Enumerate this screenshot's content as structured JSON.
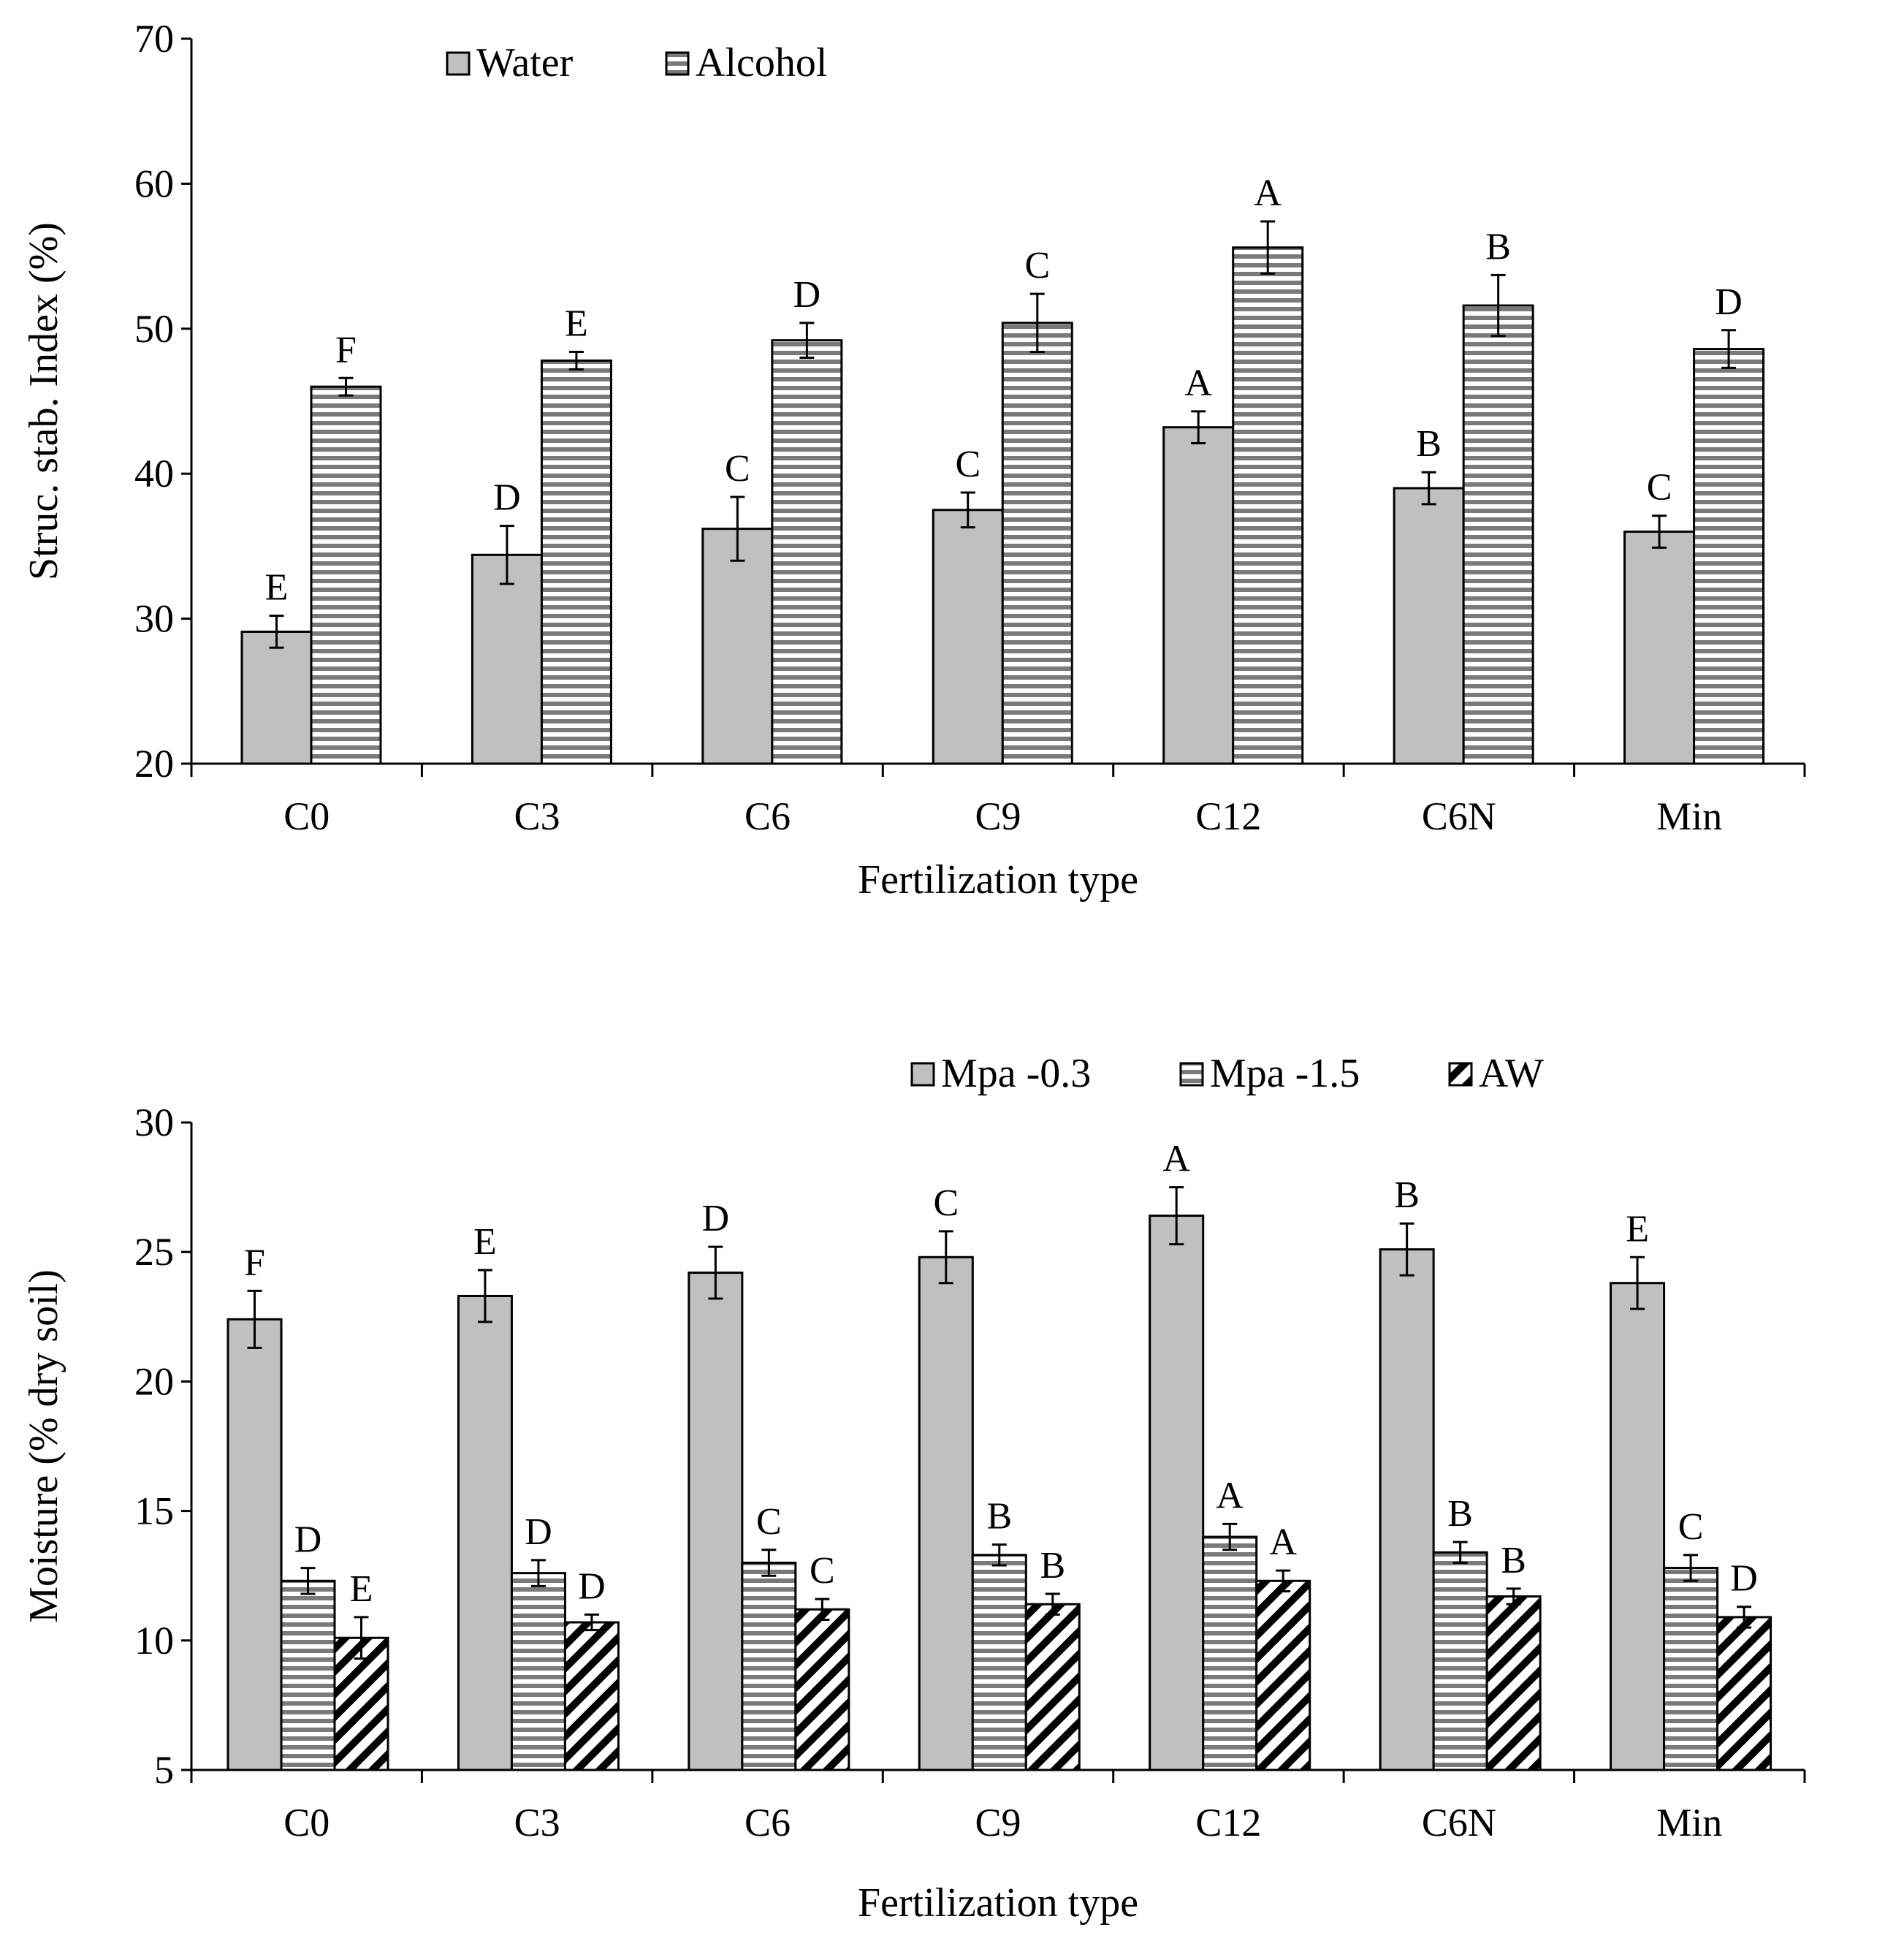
{
  "chart_data": [
    {
      "type": "bar",
      "title": "",
      "xlabel": "Fertilization type",
      "ylabel": "Struc. stab. Index (%)",
      "ylim": [
        20,
        70
      ],
      "yticks": [
        "20",
        "30",
        "40",
        "50",
        "60",
        "70"
      ],
      "categories": [
        "C0",
        "C3",
        "C6",
        "C9",
        "C12",
        "C6N",
        "Min"
      ],
      "legend_position": "top",
      "series": [
        {
          "name": "Water",
          "pattern": "solid-gray",
          "values": [
            29.1,
            34.4,
            36.2,
            37.5,
            43.2,
            39.0,
            36.0
          ],
          "errors": [
            1.1,
            2.0,
            2.2,
            1.2,
            1.1,
            1.1,
            1.1
          ],
          "letters": [
            "E",
            "D",
            "C",
            "C",
            "A",
            "B",
            "C"
          ]
        },
        {
          "name": "Alcohol",
          "pattern": "horizontal-stripes",
          "values": [
            46.0,
            47.8,
            49.2,
            50.4,
            55.6,
            51.6,
            48.6
          ],
          "errors": [
            0.6,
            0.6,
            1.2,
            2.0,
            1.8,
            2.1,
            1.3
          ],
          "letters": [
            "F",
            "E",
            "D",
            "C",
            "A",
            "B",
            "D"
          ]
        }
      ]
    },
    {
      "type": "bar",
      "title": "",
      "xlabel": "Fertilization type",
      "ylabel": "Moisture (% dry soil)",
      "ylim": [
        5,
        30
      ],
      "yticks": [
        "5",
        "10",
        "15",
        "20",
        "25",
        "30"
      ],
      "categories": [
        "C0",
        "C3",
        "C6",
        "C9",
        "C12",
        "C6N",
        "Min"
      ],
      "legend_position": "top-right",
      "series": [
        {
          "name": "Mpa -0.3",
          "pattern": "solid-gray",
          "values": [
            22.4,
            23.3,
            24.2,
            24.8,
            26.4,
            25.1,
            23.8
          ],
          "errors": [
            1.1,
            1.0,
            1.0,
            1.0,
            1.1,
            1.0,
            1.0
          ],
          "letters": [
            "F",
            "E",
            "D",
            "C",
            "A",
            "B",
            "E"
          ]
        },
        {
          "name": "Mpa -1.5",
          "pattern": "horizontal-stripes",
          "values": [
            12.3,
            12.6,
            13.0,
            13.3,
            14.0,
            13.4,
            12.8
          ],
          "errors": [
            0.5,
            0.5,
            0.5,
            0.4,
            0.5,
            0.4,
            0.5
          ],
          "letters": [
            "D",
            "D",
            "C",
            "B",
            "A",
            "B",
            "C"
          ]
        },
        {
          "name": "AW",
          "pattern": "diagonal-hatch",
          "values": [
            10.1,
            10.7,
            11.2,
            11.4,
            12.3,
            11.7,
            10.9
          ],
          "errors": [
            0.8,
            0.3,
            0.4,
            0.4,
            0.4,
            0.3,
            0.4
          ],
          "letters": [
            "E",
            "D",
            "C",
            "B",
            "A",
            "B",
            "D"
          ]
        }
      ]
    }
  ]
}
